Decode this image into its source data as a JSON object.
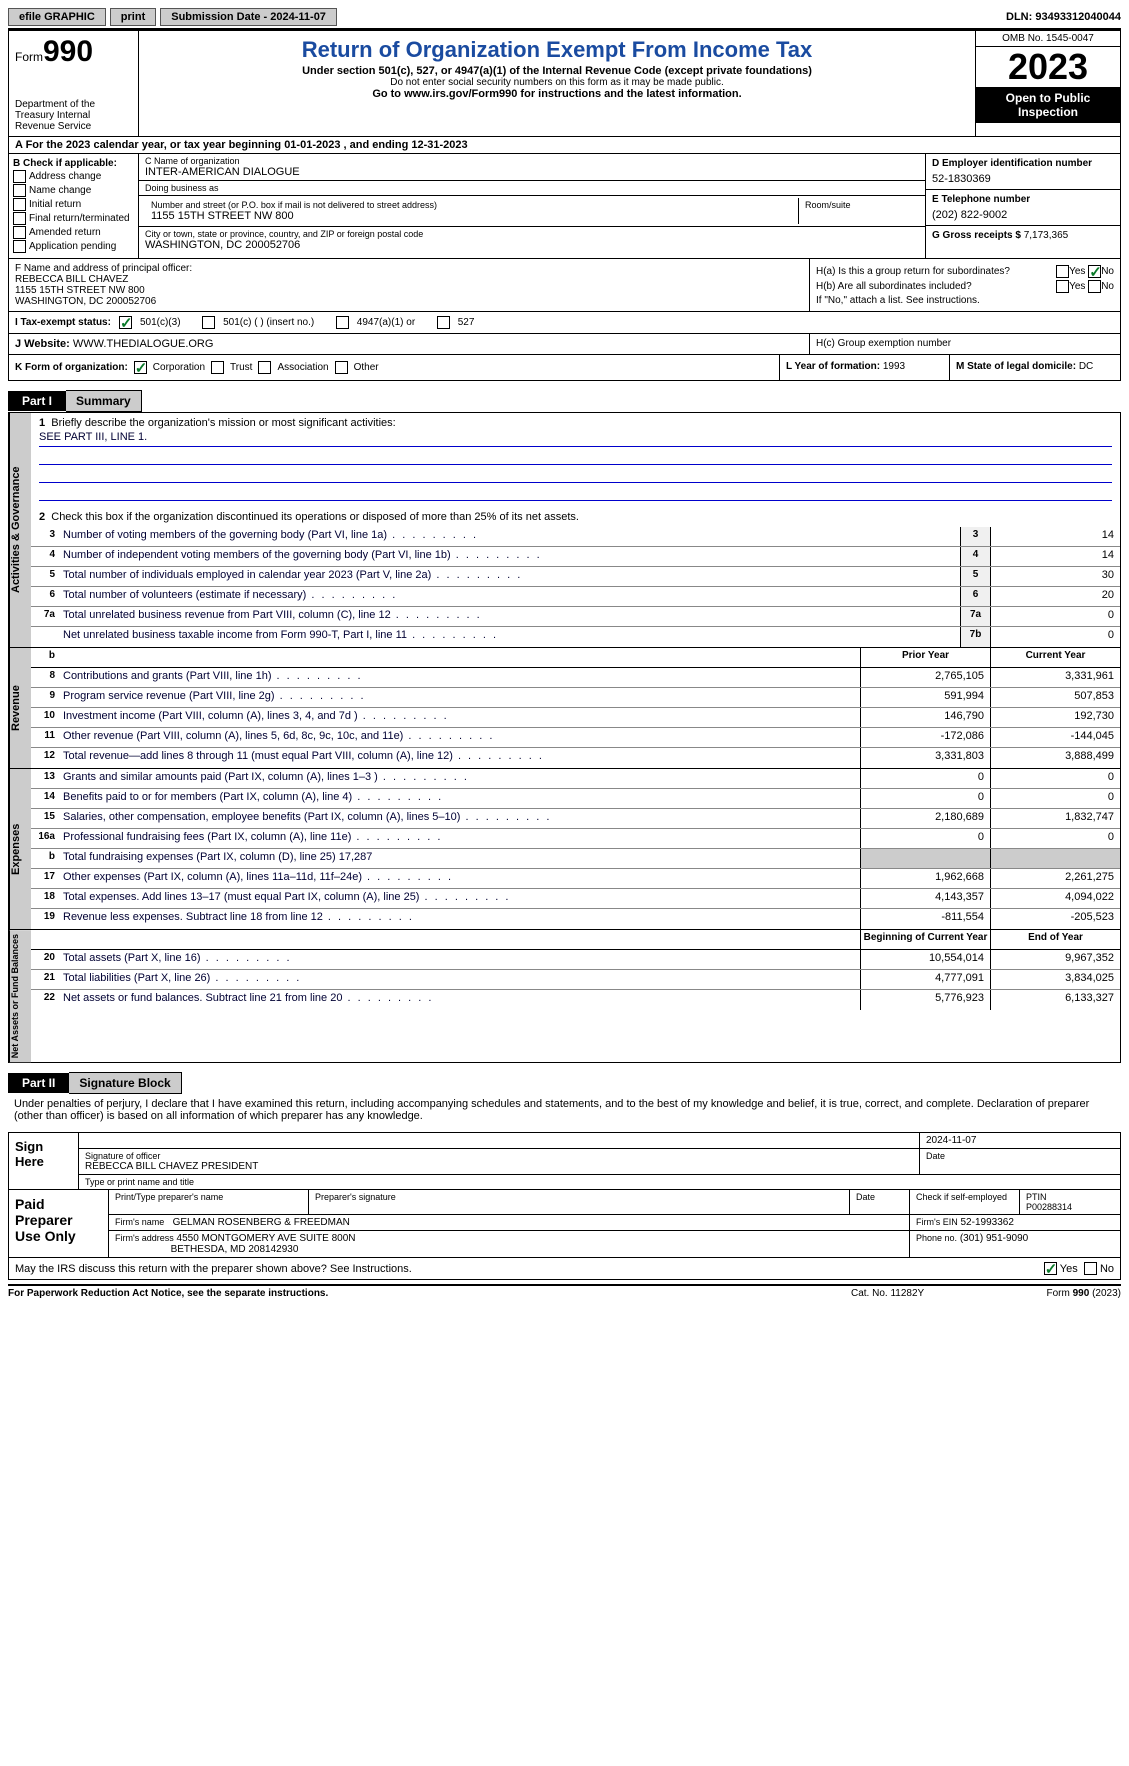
{
  "topbar": {
    "efile": "efile GRAPHIC",
    "print": "print",
    "submission": "Submission Date - 2024-11-07",
    "dln": "DLN: 93493312040044"
  },
  "header": {
    "form_word": "Form",
    "form_num": "990",
    "dept": "Department of the Treasury Internal Revenue Service",
    "title": "Return of Organization Exempt From Income Tax",
    "sub": "Under section 501(c), 527, or 4947(a)(1) of the Internal Revenue Code (except private foundations)",
    "ssn": "Do not enter social security numbers on this form as it may be made public.",
    "goto": "Go to www.irs.gov/Form990 for instructions and the latest information.",
    "omb": "OMB No. 1545-0047",
    "year": "2023",
    "open": "Open to Public Inspection"
  },
  "row_a": "A  For the 2023 calendar year, or tax year beginning 01-01-2023    , and ending 12-31-2023",
  "col_b": {
    "hdr": "B Check if applicable:",
    "items": [
      "Address change",
      "Name change",
      "Initial return",
      "Final return/terminated",
      "Amended return",
      "Application pending"
    ]
  },
  "col_c": {
    "name_lbl": "C Name of organization",
    "name": "INTER-AMERICAN DIALOGUE",
    "dba_lbl": "Doing business as",
    "dba": "",
    "addr_lbl": "Number and street (or P.O. box if mail is not delivered to street address)",
    "addr": "1155 15TH STREET NW 800",
    "room_lbl": "Room/suite",
    "city_lbl": "City or town, state or province, country, and ZIP or foreign postal code",
    "city": "WASHINGTON, DC  200052706"
  },
  "col_d": {
    "ein_lbl": "D Employer identification number",
    "ein": "52-1830369",
    "tel_lbl": "E Telephone number",
    "tel": "(202) 822-9002",
    "gross_lbl": "G Gross receipts $",
    "gross": "7,173,365"
  },
  "row_f": {
    "lbl": "F  Name and address of principal officer:",
    "name": "REBECCA BILL CHAVEZ",
    "addr1": "1155 15TH STREET NW 800",
    "addr2": "WASHINGTON, DC  200052706"
  },
  "row_h": {
    "ha": "H(a)  Is this a group return for subordinates?",
    "hb": "H(b)  Are all subordinates included?",
    "hb_note": "If \"No,\" attach a list. See instructions.",
    "hc": "H(c)  Group exemption number"
  },
  "row_i": {
    "lbl": "I    Tax-exempt status:",
    "opts": [
      "501(c)(3)",
      "501(c) (  ) (insert no.)",
      "4947(a)(1) or",
      "527"
    ]
  },
  "row_j": {
    "lbl": "J    Website:",
    "val": "  WWW.THEDIALOGUE.ORG"
  },
  "row_k": {
    "lbl": "K Form of organization:",
    "opts": [
      "Corporation",
      "Trust",
      "Association",
      "Other"
    ],
    "l_lbl": "L Year of formation:",
    "l_val": "1993",
    "m_lbl": "M State of legal domicile:",
    "m_val": "DC"
  },
  "part1": {
    "hdr": "Part I",
    "title": "Summary",
    "q1": "Briefly describe the organization's mission or most significant activities:",
    "q1_val": "SEE PART III, LINE 1.",
    "q2": "Check this box      if the organization discontinued its operations or disposed of more than 25% of its net assets.",
    "governance_rows": [
      {
        "n": "3",
        "d": "Number of voting members of the governing body (Part VI, line 1a)",
        "box": "3",
        "v": "14"
      },
      {
        "n": "4",
        "d": "Number of independent voting members of the governing body (Part VI, line 1b)",
        "box": "4",
        "v": "14"
      },
      {
        "n": "5",
        "d": "Total number of individuals employed in calendar year 2023 (Part V, line 2a)",
        "box": "5",
        "v": "30"
      },
      {
        "n": "6",
        "d": "Total number of volunteers (estimate if necessary)",
        "box": "6",
        "v": "20"
      },
      {
        "n": "7a",
        "d": "Total unrelated business revenue from Part VIII, column (C), line 12",
        "box": "7a",
        "v": "0"
      },
      {
        "n": "",
        "d": "Net unrelated business taxable income from Form 990-T, Part I, line 11",
        "box": "7b",
        "v": "0"
      }
    ],
    "prior_hdr": "Prior Year",
    "current_hdr": "Current Year",
    "revenue_rows": [
      {
        "n": "8",
        "d": "Contributions and grants (Part VIII, line 1h)",
        "p": "2,765,105",
        "c": "3,331,961"
      },
      {
        "n": "9",
        "d": "Program service revenue (Part VIII, line 2g)",
        "p": "591,994",
        "c": "507,853"
      },
      {
        "n": "10",
        "d": "Investment income (Part VIII, column (A), lines 3, 4, and 7d )",
        "p": "146,790",
        "c": "192,730"
      },
      {
        "n": "11",
        "d": "Other revenue (Part VIII, column (A), lines 5, 6d, 8c, 9c, 10c, and 11e)",
        "p": "-172,086",
        "c": "-144,045"
      },
      {
        "n": "12",
        "d": "Total revenue—add lines 8 through 11 (must equal Part VIII, column (A), line 12)",
        "p": "3,331,803",
        "c": "3,888,499"
      }
    ],
    "expense_rows": [
      {
        "n": "13",
        "d": "Grants and similar amounts paid (Part IX, column (A), lines 1–3 )",
        "p": "0",
        "c": "0"
      },
      {
        "n": "14",
        "d": "Benefits paid to or for members (Part IX, column (A), line 4)",
        "p": "0",
        "c": "0"
      },
      {
        "n": "15",
        "d": "Salaries, other compensation, employee benefits (Part IX, column (A), lines 5–10)",
        "p": "2,180,689",
        "c": "1,832,747"
      },
      {
        "n": "16a",
        "d": "Professional fundraising fees (Part IX, column (A), line 11e)",
        "p": "0",
        "c": "0"
      },
      {
        "n": "b",
        "d": "Total fundraising expenses (Part IX, column (D), line 25) 17,287",
        "p": "",
        "c": "",
        "shade": true
      },
      {
        "n": "17",
        "d": "Other expenses (Part IX, column (A), lines 11a–11d, 11f–24e)",
        "p": "1,962,668",
        "c": "2,261,275"
      },
      {
        "n": "18",
        "d": "Total expenses. Add lines 13–17 (must equal Part IX, column (A), line 25)",
        "p": "4,143,357",
        "c": "4,094,022"
      },
      {
        "n": "19",
        "d": "Revenue less expenses. Subtract line 18 from line 12",
        "p": "-811,554",
        "c": "-205,523"
      }
    ],
    "begin_hdr": "Beginning of Current Year",
    "end_hdr": "End of Year",
    "net_rows": [
      {
        "n": "20",
        "d": "Total assets (Part X, line 16)",
        "p": "10,554,014",
        "c": "9,967,352"
      },
      {
        "n": "21",
        "d": "Total liabilities (Part X, line 26)",
        "p": "4,777,091",
        "c": "3,834,025"
      },
      {
        "n": "22",
        "d": "Net assets or fund balances. Subtract line 21 from line 20",
        "p": "5,776,923",
        "c": "6,133,327"
      }
    ]
  },
  "part2": {
    "hdr": "Part II",
    "title": "Signature Block",
    "decl": "Under penalties of perjury, I declare that I have examined this return, including accompanying schedules and statements, and to the best of my knowledge and belief, it is true, correct, and complete. Declaration of preparer (other than officer) is based on all information of which preparer has any knowledge.",
    "sign_here": "Sign Here",
    "sig_date": "2024-11-07",
    "sig_lbl": "Signature of officer",
    "sig_name": "REBECCA BILL CHAVEZ  PRESIDENT",
    "sig_type": "Type or print name and title",
    "date_lbl": "Date",
    "paid": "Paid Preparer Use Only",
    "prep_name_lbl": "Print/Type preparer's name",
    "prep_sig_lbl": "Preparer's signature",
    "prep_date_lbl": "Date",
    "prep_self": "Check       if self-employed",
    "ptin_lbl": "PTIN",
    "ptin": "P00288314",
    "firm_name_lbl": "Firm's name",
    "firm_name": "GELMAN ROSENBERG & FREEDMAN",
    "firm_ein_lbl": "Firm's EIN",
    "firm_ein": "52-1993362",
    "firm_addr_lbl": "Firm's address",
    "firm_addr1": "4550 MONTGOMERY AVE SUITE 800N",
    "firm_addr2": "BETHESDA, MD  208142930",
    "phone_lbl": "Phone no.",
    "phone": "(301) 951-9090",
    "discuss": "May the IRS discuss this return with the preparer shown above? See Instructions."
  },
  "footer": {
    "l": "For Paperwork Reduction Act Notice, see the separate instructions.",
    "c": "Cat. No. 11282Y",
    "r": "Form 990 (2023)"
  },
  "labels": {
    "yes": "Yes",
    "no": "No",
    "side_gov": "Activities & Governance",
    "side_rev": "Revenue",
    "side_exp": "Expenses",
    "side_net": "Net Assets or Fund Balances"
  }
}
